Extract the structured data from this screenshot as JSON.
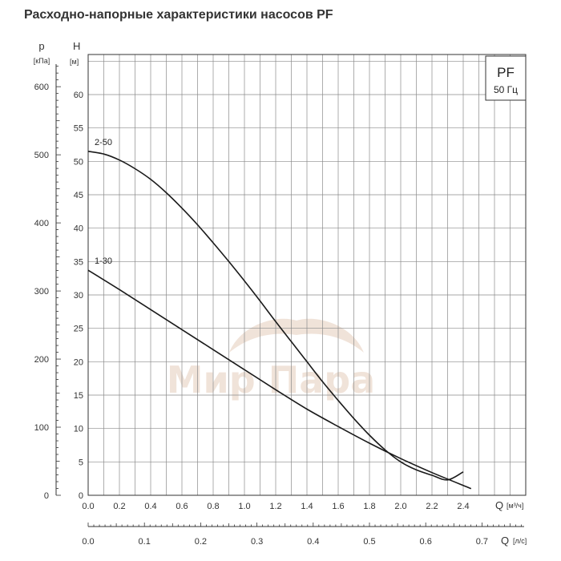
{
  "title": "Расходно-напорные характеристики насосов PF",
  "legend_box": {
    "line1": "PF",
    "line2": "50 Гц"
  },
  "watermark": "Мир Пара",
  "chart_data": {
    "type": "line",
    "x_label": "Q",
    "x_unit": "[м³/ч]",
    "x_range": [
      0,
      2.8
    ],
    "x_ticks": [
      "0.0",
      "0.2",
      "0.4",
      "0.6",
      "0.8",
      "1.0",
      "1.2",
      "1.4",
      "1.6",
      "1.8",
      "2.0",
      "2.2",
      "2.4"
    ],
    "x2_label": "Q",
    "x2_unit": "[л/с]",
    "x2_ticks": [
      "0.0",
      "0.1",
      "0.2",
      "0.3",
      "0.4",
      "0.5",
      "0.6",
      "0.7"
    ],
    "y_label": "H",
    "y_unit": "[м]",
    "y_range": [
      0,
      66
    ],
    "y_ticks": [
      "0",
      "5",
      "10",
      "15",
      "20",
      "25",
      "30",
      "35",
      "40",
      "45",
      "50",
      "55",
      "60"
    ],
    "y2_label": "p",
    "y2_unit": "[кПа]",
    "y2_ticks": [
      "0",
      "100",
      "200",
      "300",
      "400",
      "500",
      "600"
    ],
    "grid": true,
    "series": [
      {
        "name": "2-50",
        "x": [
          0,
          0.1,
          0.2,
          0.3,
          0.4,
          0.5,
          0.6,
          0.7,
          0.8,
          0.9,
          1.0,
          1.1,
          1.2,
          1.3,
          1.4,
          1.5,
          1.6,
          1.7,
          1.8,
          1.9,
          2.0,
          2.1,
          2.2,
          2.3,
          2.4
        ],
        "y": [
          51.5,
          51.1,
          50.2,
          48.9,
          47.3,
          45.3,
          43.0,
          40.5,
          37.8,
          35.0,
          32.1,
          29.1,
          26.0,
          23.0,
          20.0,
          17.0,
          14.2,
          11.5,
          9.0,
          6.8,
          5.0,
          3.8,
          3.0,
          2.3,
          3.5
        ]
      },
      {
        "name": "1-30",
        "x": [
          0,
          0.2,
          0.4,
          0.6,
          0.8,
          1.0,
          1.2,
          1.4,
          1.6,
          1.8,
          2.0,
          2.2,
          2.45
        ],
        "y": [
          33.7,
          30.8,
          27.8,
          24.8,
          21.8,
          18.8,
          15.8,
          12.9,
          10.3,
          7.8,
          5.5,
          3.4,
          1.0
        ]
      }
    ]
  }
}
